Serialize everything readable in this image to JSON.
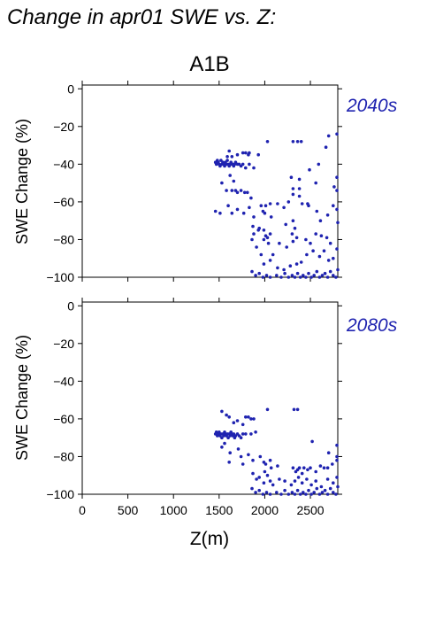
{
  "page": {
    "title": "Change in apr01 SWE vs. Z:",
    "scenario": "A1B"
  },
  "colors": {
    "points": "#1f23b0",
    "period_label": "#1f23b0"
  },
  "chart_data": [
    {
      "type": "scatter",
      "period": "2040s",
      "xlabel": "",
      "ylabel": "SWE Change (%)",
      "xlim": [
        0,
        2800
      ],
      "ylim": [
        -100,
        2
      ],
      "xticks": [
        0,
        500,
        1000,
        1500,
        2000,
        2500
      ],
      "yticks": [
        0,
        -20,
        -40,
        -60,
        -80,
        -100
      ],
      "x_tick_labels_shown": false,
      "points": [
        [
          1460,
          -39
        ],
        [
          1470,
          -40
        ],
        [
          1480,
          -38
        ],
        [
          1490,
          -39
        ],
        [
          1500,
          -40
        ],
        [
          1510,
          -41
        ],
        [
          1520,
          -38
        ],
        [
          1530,
          -40
        ],
        [
          1540,
          -39
        ],
        [
          1550,
          -40
        ],
        [
          1560,
          -41
        ],
        [
          1570,
          -39
        ],
        [
          1580,
          -40
        ],
        [
          1590,
          -38
        ],
        [
          1600,
          -40
        ],
        [
          1610,
          -41
        ],
        [
          1620,
          -40
        ],
        [
          1630,
          -39
        ],
        [
          1640,
          -40
        ],
        [
          1650,
          -40
        ],
        [
          1660,
          -41
        ],
        [
          1670,
          -40
        ],
        [
          1680,
          -39
        ],
        [
          1700,
          -40
        ],
        [
          1720,
          -40
        ],
        [
          1740,
          -41
        ],
        [
          1760,
          -40
        ],
        [
          1790,
          -42
        ],
        [
          1830,
          -40
        ],
        [
          1880,
          -42
        ],
        [
          1590,
          -36
        ],
        [
          1610,
          -33
        ],
        [
          1640,
          -36
        ],
        [
          1700,
          -35
        ],
        [
          1760,
          -34
        ],
        [
          1790,
          -34
        ],
        [
          1820,
          -35
        ],
        [
          1830,
          -34
        ],
        [
          1930,
          -35
        ],
        [
          1530,
          -50
        ],
        [
          1620,
          -46
        ],
        [
          1660,
          -49
        ],
        [
          1580,
          -54
        ],
        [
          1640,
          -54
        ],
        [
          1680,
          -54
        ],
        [
          1700,
          -55
        ],
        [
          1740,
          -54
        ],
        [
          1780,
          -55
        ],
        [
          1810,
          -55
        ],
        [
          1850,
          -58
        ],
        [
          1460,
          -65
        ],
        [
          1510,
          -66
        ],
        [
          1600,
          -62
        ],
        [
          1640,
          -66
        ],
        [
          1700,
          -64
        ],
        [
          1770,
          -66
        ],
        [
          1830,
          -63
        ],
        [
          1880,
          -68
        ],
        [
          2030,
          -28
        ],
        [
          2310,
          -28
        ],
        [
          2360,
          -28
        ],
        [
          2400,
          -28
        ],
        [
          2700,
          -25
        ],
        [
          2790,
          -24
        ],
        [
          2670,
          -31
        ],
        [
          2590,
          -40
        ],
        [
          2490,
          -43
        ],
        [
          2290,
          -47
        ],
        [
          2310,
          -53
        ],
        [
          2310,
          -56
        ],
        [
          2380,
          -48
        ],
        [
          2380,
          -53
        ],
        [
          2380,
          -57
        ],
        [
          2560,
          -50
        ],
        [
          2790,
          -47
        ],
        [
          2790,
          -54
        ],
        [
          2760,
          -52
        ],
        [
          2140,
          -61
        ],
        [
          2210,
          -63
        ],
        [
          2260,
          -60
        ],
        [
          2410,
          -61
        ],
        [
          2470,
          -61
        ],
        [
          2480,
          -62
        ],
        [
          2570,
          -65
        ],
        [
          2750,
          -62
        ],
        [
          2790,
          -64
        ],
        [
          2690,
          -67
        ],
        [
          1960,
          -62
        ],
        [
          1980,
          -65
        ],
        [
          2000,
          -66
        ],
        [
          2010,
          -62
        ],
        [
          2060,
          -61
        ],
        [
          2070,
          -68
        ],
        [
          2230,
          -72
        ],
        [
          2310,
          -70
        ],
        [
          2610,
          -70
        ],
        [
          2800,
          -71
        ],
        [
          1870,
          -73
        ],
        [
          1880,
          -77
        ],
        [
          1930,
          -75
        ],
        [
          1940,
          -74
        ],
        [
          1990,
          -75
        ],
        [
          2010,
          -78
        ],
        [
          2030,
          -79
        ],
        [
          2060,
          -77
        ],
        [
          2300,
          -77
        ],
        [
          2330,
          -74
        ],
        [
          1860,
          -80
        ],
        [
          1910,
          -84
        ],
        [
          1960,
          -88
        ],
        [
          1990,
          -80
        ],
        [
          2040,
          -82
        ],
        [
          2090,
          -88
        ],
        [
          2160,
          -82
        ],
        [
          2240,
          -84
        ],
        [
          2310,
          -81
        ],
        [
          2350,
          -79
        ],
        [
          2450,
          -80
        ],
        [
          2500,
          -82
        ],
        [
          2560,
          -77
        ],
        [
          2620,
          -78
        ],
        [
          2680,
          -79
        ],
        [
          2720,
          -82
        ],
        [
          2790,
          -85
        ],
        [
          2400,
          -92
        ],
        [
          2460,
          -88
        ],
        [
          2530,
          -86
        ],
        [
          2600,
          -89
        ],
        [
          2650,
          -86
        ],
        [
          2700,
          -91
        ],
        [
          2750,
          -90
        ],
        [
          1990,
          -93
        ],
        [
          2060,
          -91
        ],
        [
          2140,
          -95
        ],
        [
          2210,
          -96
        ],
        [
          2280,
          -94
        ],
        [
          2350,
          -93
        ],
        [
          1860,
          -97
        ],
        [
          1900,
          -99
        ],
        [
          1940,
          -98
        ],
        [
          1980,
          -100
        ],
        [
          2020,
          -99
        ],
        [
          2060,
          -100
        ],
        [
          2130,
          -99
        ],
        [
          2180,
          -100
        ],
        [
          2220,
          -98
        ],
        [
          2260,
          -100
        ],
        [
          2300,
          -99
        ],
        [
          2330,
          -100
        ],
        [
          2360,
          -98
        ],
        [
          2390,
          -100
        ],
        [
          2420,
          -99
        ],
        [
          2450,
          -100
        ],
        [
          2480,
          -98
        ],
        [
          2510,
          -100
        ],
        [
          2540,
          -99
        ],
        [
          2570,
          -97
        ],
        [
          2600,
          -100
        ],
        [
          2630,
          -99
        ],
        [
          2660,
          -98
        ],
        [
          2690,
          -100
        ],
        [
          2720,
          -97
        ],
        [
          2750,
          -99
        ],
        [
          2780,
          -100
        ],
        [
          2800,
          -96
        ]
      ]
    },
    {
      "type": "scatter",
      "period": "2080s",
      "xlabel": "Z(m)",
      "ylabel": "SWE Change (%)",
      "xlim": [
        0,
        2800
      ],
      "ylim": [
        -100,
        2
      ],
      "xticks": [
        0,
        500,
        1000,
        1500,
        2000,
        2500
      ],
      "yticks": [
        0,
        -20,
        -40,
        -60,
        -80,
        -100
      ],
      "x_tick_labels_shown": true,
      "points": [
        [
          1460,
          -68
        ],
        [
          1470,
          -67
        ],
        [
          1480,
          -69
        ],
        [
          1490,
          -68
        ],
        [
          1500,
          -67
        ],
        [
          1510,
          -69
        ],
        [
          1520,
          -68
        ],
        [
          1530,
          -70
        ],
        [
          1540,
          -68
        ],
        [
          1550,
          -69
        ],
        [
          1560,
          -67
        ],
        [
          1570,
          -68
        ],
        [
          1580,
          -69
        ],
        [
          1590,
          -68
        ],
        [
          1600,
          -70
        ],
        [
          1610,
          -68
        ],
        [
          1620,
          -69
        ],
        [
          1630,
          -67
        ],
        [
          1640,
          -68
        ],
        [
          1650,
          -69
        ],
        [
          1660,
          -68
        ],
        [
          1670,
          -70
        ],
        [
          1680,
          -69
        ],
        [
          1700,
          -68
        ],
        [
          1720,
          -69
        ],
        [
          1740,
          -70
        ],
        [
          1760,
          -68
        ],
        [
          1790,
          -68
        ],
        [
          1850,
          -68
        ],
        [
          1900,
          -67
        ],
        [
          1530,
          -56
        ],
        [
          1580,
          -58
        ],
        [
          1610,
          -59
        ],
        [
          1660,
          -62
        ],
        [
          1700,
          -61
        ],
        [
          1760,
          -63
        ],
        [
          1790,
          -59
        ],
        [
          1820,
          -59
        ],
        [
          1850,
          -60
        ],
        [
          1880,
          -60
        ],
        [
          1530,
          -75
        ],
        [
          1560,
          -73
        ],
        [
          1620,
          -78
        ],
        [
          1710,
          -76
        ],
        [
          1740,
          -80
        ],
        [
          1820,
          -79
        ],
        [
          1870,
          -82
        ],
        [
          1610,
          -83
        ],
        [
          1760,
          -84
        ],
        [
          2030,
          -55
        ],
        [
          2320,
          -55
        ],
        [
          2360,
          -55
        ],
        [
          2520,
          -72
        ],
        [
          2700,
          -78
        ],
        [
          2790,
          -74
        ],
        [
          2790,
          -80
        ],
        [
          1950,
          -80
        ],
        [
          1990,
          -83
        ],
        [
          2010,
          -84
        ],
        [
          2060,
          -82
        ],
        [
          2070,
          -86
        ],
        [
          2140,
          -85
        ],
        [
          2000,
          -88
        ],
        [
          2030,
          -90
        ],
        [
          2310,
          -86
        ],
        [
          2340,
          -88
        ],
        [
          2360,
          -87
        ],
        [
          2380,
          -86
        ],
        [
          2410,
          -89
        ],
        [
          2430,
          -86
        ],
        [
          2470,
          -87
        ],
        [
          2500,
          -86
        ],
        [
          2560,
          -88
        ],
        [
          2610,
          -85
        ],
        [
          2650,
          -86
        ],
        [
          2690,
          -86
        ],
        [
          2740,
          -84
        ],
        [
          2790,
          -82
        ],
        [
          1870,
          -89
        ],
        [
          1910,
          -92
        ],
        [
          1940,
          -91
        ],
        [
          1990,
          -94
        ],
        [
          2060,
          -93
        ],
        [
          2090,
          -95
        ],
        [
          2160,
          -92
        ],
        [
          2220,
          -93
        ],
        [
          2290,
          -95
        ],
        [
          2330,
          -93
        ],
        [
          2370,
          -91
        ],
        [
          2410,
          -94
        ],
        [
          2460,
          -92
        ],
        [
          2510,
          -95
        ],
        [
          2560,
          -93
        ],
        [
          2620,
          -96
        ],
        [
          2690,
          -92
        ],
        [
          2750,
          -94
        ],
        [
          2790,
          -91
        ],
        [
          1860,
          -97
        ],
        [
          1900,
          -99
        ],
        [
          1940,
          -98
        ],
        [
          1980,
          -100
        ],
        [
          2020,
          -99
        ],
        [
          2060,
          -100
        ],
        [
          2130,
          -99
        ],
        [
          2180,
          -100
        ],
        [
          2220,
          -98
        ],
        [
          2260,
          -100
        ],
        [
          2300,
          -99
        ],
        [
          2330,
          -100
        ],
        [
          2360,
          -98
        ],
        [
          2390,
          -100
        ],
        [
          2420,
          -99
        ],
        [
          2450,
          -100
        ],
        [
          2480,
          -98
        ],
        [
          2510,
          -100
        ],
        [
          2540,
          -99
        ],
        [
          2570,
          -97
        ],
        [
          2600,
          -100
        ],
        [
          2630,
          -99
        ],
        [
          2660,
          -98
        ],
        [
          2690,
          -100
        ],
        [
          2720,
          -97
        ],
        [
          2750,
          -99
        ],
        [
          2780,
          -100
        ],
        [
          2800,
          -96
        ]
      ]
    }
  ]
}
